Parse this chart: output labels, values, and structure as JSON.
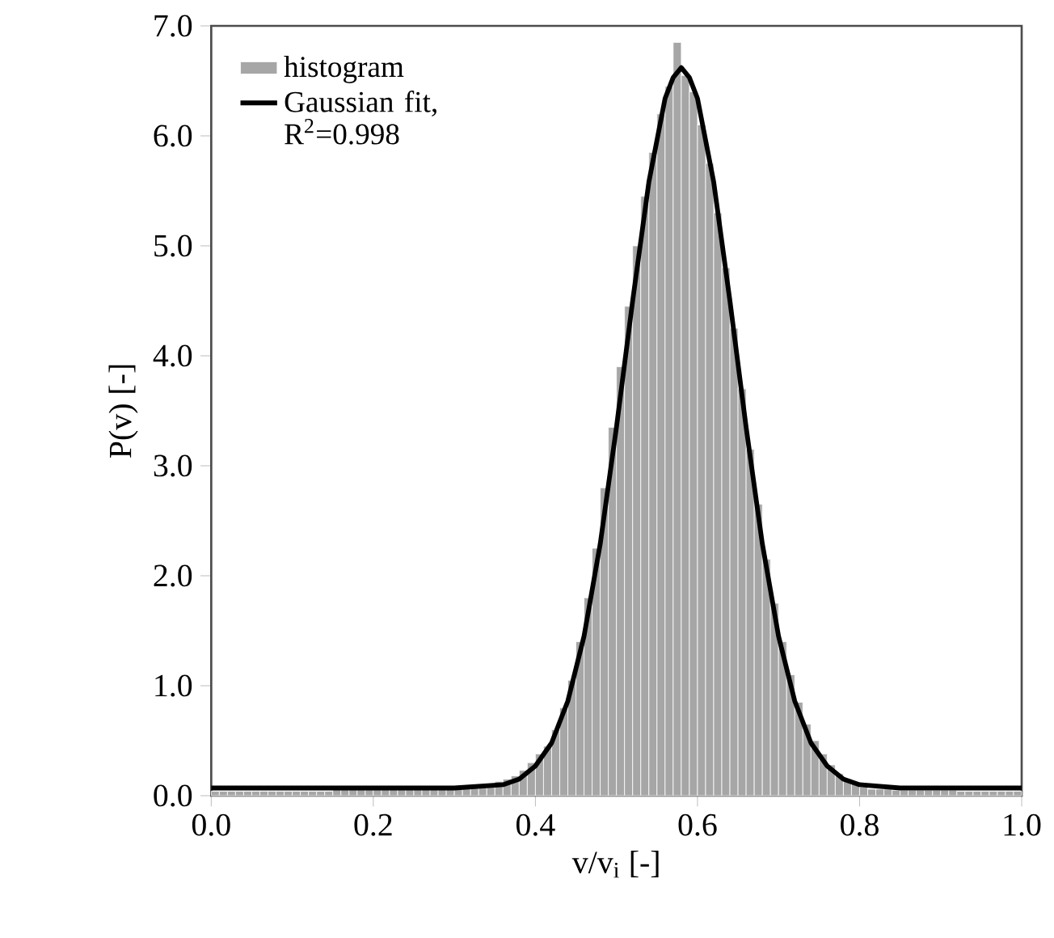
{
  "chart_data": {
    "type": "histogram",
    "xlabel": "v/v$_{i}$ [-]",
    "ylabel": "P(v) [-]",
    "xlim": [
      0,
      1
    ],
    "ylim": [
      0,
      7
    ],
    "xticks": [
      {
        "value": 0,
        "label": "0.0"
      },
      {
        "value": 0.2,
        "label": "0.2"
      },
      {
        "value": 0.4,
        "label": "0.4"
      },
      {
        "value": 0.6,
        "label": "0.6"
      },
      {
        "value": 0.8,
        "label": "0.8"
      },
      {
        "value": 1,
        "label": "1.0"
      }
    ],
    "yticks": [
      {
        "value": 0,
        "label": "0.0"
      },
      {
        "value": 1,
        "label": "1.0"
      },
      {
        "value": 2,
        "label": "2.0"
      },
      {
        "value": 3,
        "label": "3.0"
      },
      {
        "value": 4,
        "label": "4.0"
      },
      {
        "value": 5,
        "label": "5.0"
      },
      {
        "value": 6,
        "label": "6.0"
      },
      {
        "value": 7,
        "label": "7.0"
      }
    ],
    "legend": "top left",
    "grid": false,
    "series": [
      {
        "name": "histogram",
        "color": "#a6a6a6",
        "bins": [
          0,
          0.01,
          0.02,
          0.03,
          0.04,
          0.05,
          0.06,
          0.07,
          0.08,
          0.09,
          0.1,
          0.11,
          0.12,
          0.13,
          0.14,
          0.15,
          0.16,
          0.17,
          0.18,
          0.19,
          0.2,
          0.21,
          0.22,
          0.23,
          0.24,
          0.25,
          0.26,
          0.27,
          0.28,
          0.29,
          0.3,
          0.31,
          0.32,
          0.33,
          0.34,
          0.35,
          0.36,
          0.37,
          0.38,
          0.39,
          0.4,
          0.41,
          0.42,
          0.43,
          0.44,
          0.45,
          0.46,
          0.47,
          0.48,
          0.49,
          0.5,
          0.51,
          0.52,
          0.53,
          0.54,
          0.55,
          0.56,
          0.57,
          0.58,
          0.59,
          0.6,
          0.61,
          0.62,
          0.63,
          0.64,
          0.65,
          0.66,
          0.67,
          0.68,
          0.69,
          0.7,
          0.71,
          0.72,
          0.73,
          0.74,
          0.75,
          0.76,
          0.77,
          0.78,
          0.79,
          0.8,
          0.81,
          0.82,
          0.83,
          0.84,
          0.85,
          0.86,
          0.87,
          0.88,
          0.89,
          0.9,
          0.91,
          0.92,
          0.93,
          0.94,
          0.95,
          0.96,
          0.97,
          0.98,
          0.99,
          1
        ],
        "values": [
          0.04,
          0.04,
          0.04,
          0.04,
          0.04,
          0.04,
          0.04,
          0.04,
          0.04,
          0.04,
          0.04,
          0.04,
          0.04,
          0.04,
          0.04,
          0.06,
          0.06,
          0.06,
          0.06,
          0.06,
          0.06,
          0.06,
          0.06,
          0.06,
          0.06,
          0.06,
          0.06,
          0.06,
          0.06,
          0.06,
          0.07,
          0.08,
          0.09,
          0.1,
          0.11,
          0.13,
          0.15,
          0.18,
          0.23,
          0.3,
          0.38,
          0.45,
          0.6,
          0.8,
          1.05,
          1.4,
          1.8,
          2.25,
          2.8,
          3.35,
          3.9,
          4.45,
          5.0,
          5.45,
          5.85,
          6.2,
          6.45,
          6.85,
          6.55,
          6.4,
          6.1,
          5.75,
          5.3,
          4.8,
          4.25,
          3.7,
          3.15,
          2.65,
          2.15,
          1.75,
          1.4,
          1.1,
          0.85,
          0.65,
          0.5,
          0.38,
          0.28,
          0.2,
          0.15,
          0.11,
          0.08,
          0.06,
          0.06,
          0.06,
          0.05,
          0.05,
          0.05,
          0.05,
          0.05,
          0.05,
          0.05,
          0.05,
          0.04,
          0.04,
          0.04,
          0.04,
          0.04,
          0.04,
          0.04,
          0.04
        ]
      },
      {
        "name": "Gaussian fit, R$^{2}$=0.998",
        "type": "line",
        "color": "#000000",
        "marker": "none",
        "line_style": "solid",
        "x": [
          0,
          0.1,
          0.2,
          0.3,
          0.36,
          0.38,
          0.4,
          0.42,
          0.44,
          0.46,
          0.48,
          0.5,
          0.52,
          0.54,
          0.56,
          0.57,
          0.58,
          0.59,
          0.6,
          0.62,
          0.64,
          0.66,
          0.68,
          0.7,
          0.72,
          0.74,
          0.76,
          0.78,
          0.8,
          0.85,
          0.9,
          1
        ],
        "values": [
          0.07,
          0.07,
          0.07,
          0.07,
          0.1,
          0.15,
          0.27,
          0.48,
          0.86,
          1.45,
          2.29,
          3.35,
          4.5,
          5.58,
          6.34,
          6.53,
          6.62,
          6.53,
          6.34,
          5.58,
          4.5,
          3.35,
          2.29,
          1.45,
          0.86,
          0.48,
          0.27,
          0.15,
          0.1,
          0.07,
          0.07,
          0.07
        ]
      }
    ]
  }
}
